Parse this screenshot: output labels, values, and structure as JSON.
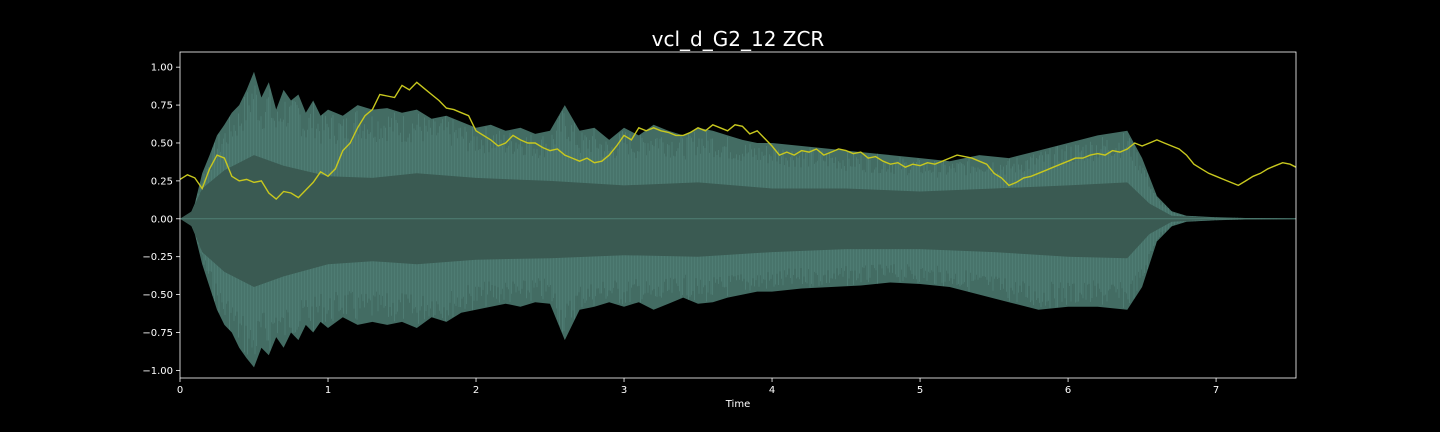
{
  "chart_data": {
    "type": "area",
    "title": "vcl_d_G2_12 ZCR",
    "xlabel": "Time",
    "ylabel": "",
    "xlim": [
      0,
      7.54
    ],
    "ylim": [
      -1.05,
      1.1
    ],
    "x_ticks": [
      0,
      1,
      2,
      3,
      4,
      5,
      6,
      7
    ],
    "y_ticks": [
      -1.0,
      -0.75,
      -0.5,
      -0.25,
      0.0,
      0.25,
      0.5,
      0.75,
      1.0
    ],
    "y_tick_labels": [
      "−1.00",
      "−0.75",
      "−0.50",
      "−0.25",
      "0.00",
      "0.25",
      "0.50",
      "0.75",
      "1.00"
    ],
    "grid": false,
    "colors": {
      "background": "#000000",
      "frame": "#ffffff",
      "waveform_peak": "#4f7f74",
      "waveform_rms": "#3a5a52",
      "zcr_line": "#c8c81e"
    },
    "series": [
      {
        "kind": "waveform_envelope_upper",
        "x": [
          0,
          0.06,
          0.1,
          0.15,
          0.2,
          0.25,
          0.3,
          0.35,
          0.4,
          0.45,
          0.5,
          0.55,
          0.6,
          0.65,
          0.7,
          0.75,
          0.8,
          0.85,
          0.9,
          0.95,
          1.0,
          1.1,
          1.2,
          1.3,
          1.4,
          1.5,
          1.6,
          1.7,
          1.8,
          1.9,
          2.0,
          2.1,
          2.2,
          2.3,
          2.4,
          2.5,
          2.6,
          2.7,
          2.8,
          2.9,
          3.0,
          3.1,
          3.2,
          3.3,
          3.4,
          3.5,
          3.6,
          3.7,
          3.8,
          3.9,
          4.0,
          4.2,
          4.4,
          4.6,
          4.8,
          5.0,
          5.2,
          5.4,
          5.6,
          5.8,
          6.0,
          6.2,
          6.4,
          6.5,
          6.6,
          6.7,
          6.8,
          7.0,
          7.2,
          7.4,
          7.54
        ],
        "values": [
          0.0,
          0.01,
          0.1,
          0.3,
          0.42,
          0.55,
          0.62,
          0.7,
          0.75,
          0.85,
          0.97,
          0.8,
          0.9,
          0.72,
          0.85,
          0.78,
          0.82,
          0.7,
          0.78,
          0.68,
          0.72,
          0.68,
          0.75,
          0.72,
          0.73,
          0.7,
          0.72,
          0.66,
          0.68,
          0.64,
          0.6,
          0.62,
          0.58,
          0.6,
          0.56,
          0.58,
          0.75,
          0.58,
          0.6,
          0.52,
          0.6,
          0.55,
          0.62,
          0.58,
          0.55,
          0.6,
          0.58,
          0.55,
          0.52,
          0.5,
          0.5,
          0.48,
          0.46,
          0.44,
          0.42,
          0.4,
          0.38,
          0.42,
          0.4,
          0.45,
          0.5,
          0.55,
          0.58,
          0.4,
          0.15,
          0.05,
          0.02,
          0.01,
          0.005,
          0.003,
          0.002
        ]
      },
      {
        "kind": "waveform_envelope_lower",
        "x": [
          0,
          0.06,
          0.1,
          0.15,
          0.2,
          0.25,
          0.3,
          0.35,
          0.4,
          0.45,
          0.5,
          0.55,
          0.6,
          0.65,
          0.7,
          0.75,
          0.8,
          0.85,
          0.9,
          0.95,
          1.0,
          1.1,
          1.2,
          1.3,
          1.4,
          1.5,
          1.6,
          1.7,
          1.8,
          1.9,
          2.0,
          2.1,
          2.2,
          2.3,
          2.4,
          2.5,
          2.6,
          2.7,
          2.8,
          2.9,
          3.0,
          3.1,
          3.2,
          3.3,
          3.4,
          3.5,
          3.6,
          3.7,
          3.8,
          3.9,
          4.0,
          4.2,
          4.4,
          4.6,
          4.8,
          5.0,
          5.2,
          5.4,
          5.6,
          5.8,
          6.0,
          6.2,
          6.4,
          6.5,
          6.6,
          6.7,
          6.8,
          7.0,
          7.2,
          7.4,
          7.54
        ],
        "values": [
          0.0,
          -0.01,
          -0.1,
          -0.3,
          -0.45,
          -0.6,
          -0.7,
          -0.75,
          -0.85,
          -0.92,
          -0.98,
          -0.85,
          -0.9,
          -0.78,
          -0.85,
          -0.75,
          -0.8,
          -0.7,
          -0.75,
          -0.68,
          -0.72,
          -0.65,
          -0.7,
          -0.68,
          -0.7,
          -0.68,
          -0.72,
          -0.65,
          -0.68,
          -0.62,
          -0.6,
          -0.58,
          -0.56,
          -0.58,
          -0.55,
          -0.56,
          -0.8,
          -0.6,
          -0.58,
          -0.55,
          -0.58,
          -0.55,
          -0.6,
          -0.56,
          -0.52,
          -0.56,
          -0.55,
          -0.52,
          -0.5,
          -0.48,
          -0.48,
          -0.46,
          -0.45,
          -0.44,
          -0.42,
          -0.43,
          -0.45,
          -0.5,
          -0.55,
          -0.6,
          -0.58,
          -0.58,
          -0.6,
          -0.45,
          -0.15,
          -0.05,
          -0.02,
          -0.01,
          -0.005,
          -0.003,
          -0.002
        ]
      },
      {
        "kind": "waveform_rms_upper",
        "x": [
          0,
          0.08,
          0.15,
          0.3,
          0.5,
          0.7,
          1.0,
          1.3,
          1.6,
          2.0,
          2.5,
          3.0,
          3.5,
          4.0,
          4.5,
          5.0,
          5.5,
          6.0,
          6.4,
          6.55,
          6.7,
          7.0,
          7.54
        ],
        "values": [
          0.0,
          0.05,
          0.2,
          0.32,
          0.42,
          0.35,
          0.28,
          0.27,
          0.3,
          0.27,
          0.25,
          0.22,
          0.24,
          0.2,
          0.2,
          0.18,
          0.2,
          0.22,
          0.24,
          0.1,
          0.02,
          0.005,
          0.002
        ]
      },
      {
        "kind": "waveform_rms_lower",
        "x": [
          0,
          0.08,
          0.15,
          0.3,
          0.5,
          0.7,
          1.0,
          1.3,
          1.6,
          2.0,
          2.5,
          3.0,
          3.5,
          4.0,
          4.5,
          5.0,
          5.5,
          6.0,
          6.4,
          6.55,
          6.7,
          7.0,
          7.54
        ],
        "values": [
          0.0,
          -0.05,
          -0.22,
          -0.35,
          -0.45,
          -0.38,
          -0.3,
          -0.28,
          -0.3,
          -0.27,
          -0.26,
          -0.24,
          -0.25,
          -0.22,
          -0.2,
          -0.2,
          -0.22,
          -0.25,
          -0.26,
          -0.1,
          -0.02,
          -0.005,
          -0.002
        ]
      },
      {
        "kind": "zcr_line",
        "x": [
          0.0,
          0.05,
          0.1,
          0.15,
          0.2,
          0.25,
          0.3,
          0.35,
          0.4,
          0.45,
          0.5,
          0.55,
          0.6,
          0.65,
          0.7,
          0.75,
          0.8,
          0.85,
          0.9,
          0.95,
          1.0,
          1.05,
          1.1,
          1.15,
          1.2,
          1.25,
          1.3,
          1.35,
          1.4,
          1.45,
          1.5,
          1.55,
          1.6,
          1.65,
          1.7,
          1.75,
          1.8,
          1.85,
          1.9,
          1.95,
          2.0,
          2.05,
          2.1,
          2.15,
          2.2,
          2.25,
          2.3,
          2.35,
          2.4,
          2.45,
          2.5,
          2.55,
          2.6,
          2.65,
          2.7,
          2.75,
          2.8,
          2.85,
          2.9,
          2.95,
          3.0,
          3.05,
          3.1,
          3.15,
          3.2,
          3.25,
          3.3,
          3.35,
          3.4,
          3.45,
          3.5,
          3.55,
          3.6,
          3.65,
          3.7,
          3.75,
          3.8,
          3.85,
          3.9,
          3.95,
          4.0,
          4.05,
          4.1,
          4.15,
          4.2,
          4.25,
          4.3,
          4.35,
          4.4,
          4.45,
          4.5,
          4.55,
          4.6,
          4.65,
          4.7,
          4.75,
          4.8,
          4.85,
          4.9,
          4.95,
          5.0,
          5.05,
          5.1,
          5.15,
          5.2,
          5.25,
          5.3,
          5.35,
          5.4,
          5.45,
          5.5,
          5.55,
          5.6,
          5.65,
          5.7,
          5.75,
          5.8,
          5.85,
          5.9,
          5.95,
          6.0,
          6.05,
          6.1,
          6.15,
          6.2,
          6.25,
          6.3,
          6.35,
          6.4,
          6.45,
          6.5,
          6.55,
          6.6,
          6.65,
          6.7,
          6.75,
          6.8,
          6.85,
          6.9,
          6.95,
          7.0,
          7.05,
          7.1,
          7.15,
          7.2,
          7.25,
          7.3,
          7.35,
          7.4,
          7.45,
          7.5,
          7.54
        ],
        "values": [
          0.26,
          0.29,
          0.27,
          0.2,
          0.33,
          0.42,
          0.4,
          0.28,
          0.25,
          0.26,
          0.24,
          0.25,
          0.17,
          0.13,
          0.18,
          0.17,
          0.14,
          0.19,
          0.24,
          0.31,
          0.28,
          0.33,
          0.45,
          0.5,
          0.6,
          0.68,
          0.72,
          0.82,
          0.81,
          0.8,
          0.88,
          0.85,
          0.9,
          0.86,
          0.82,
          0.78,
          0.73,
          0.72,
          0.7,
          0.68,
          0.58,
          0.55,
          0.52,
          0.48,
          0.5,
          0.55,
          0.52,
          0.5,
          0.5,
          0.47,
          0.45,
          0.46,
          0.42,
          0.4,
          0.38,
          0.4,
          0.37,
          0.38,
          0.42,
          0.48,
          0.55,
          0.52,
          0.6,
          0.58,
          0.6,
          0.58,
          0.57,
          0.55,
          0.55,
          0.57,
          0.6,
          0.58,
          0.62,
          0.6,
          0.58,
          0.62,
          0.61,
          0.56,
          0.58,
          0.53,
          0.48,
          0.42,
          0.44,
          0.42,
          0.45,
          0.44,
          0.46,
          0.42,
          0.44,
          0.46,
          0.45,
          0.43,
          0.44,
          0.4,
          0.41,
          0.38,
          0.36,
          0.37,
          0.34,
          0.36,
          0.35,
          0.37,
          0.36,
          0.38,
          0.4,
          0.42,
          0.41,
          0.4,
          0.38,
          0.36,
          0.3,
          0.27,
          0.22,
          0.24,
          0.27,
          0.28,
          0.3,
          0.32,
          0.34,
          0.36,
          0.38,
          0.4,
          0.4,
          0.42,
          0.43,
          0.42,
          0.45,
          0.44,
          0.46,
          0.5,
          0.48,
          0.5,
          0.52,
          0.5,
          0.48,
          0.46,
          0.42,
          0.36,
          0.33,
          0.3,
          0.28,
          0.26,
          0.24,
          0.22,
          0.25,
          0.28,
          0.3,
          0.33,
          0.35,
          0.37,
          0.36,
          0.34
        ]
      }
    ]
  }
}
